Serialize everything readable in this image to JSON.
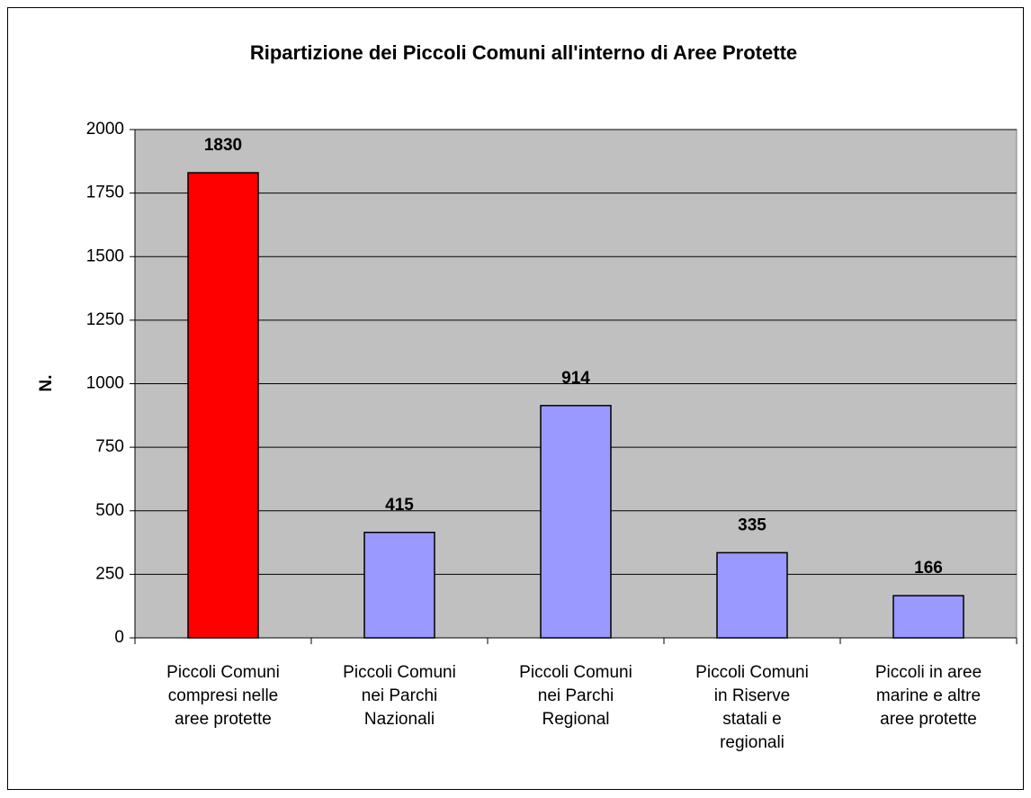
{
  "chart_data": {
    "type": "bar",
    "title": "Ripartizione dei Piccoli Comuni all'interno di Aree Protette",
    "y_label": "N.",
    "categories": [
      [
        "Piccoli Comuni",
        "compresi nelle",
        "aree protette"
      ],
      [
        "Piccoli Comuni",
        "nei Parchi",
        "Nazionali"
      ],
      [
        "Piccoli Comuni",
        "nei Parchi",
        "Regional"
      ],
      [
        "Piccoli Comuni",
        "in Riserve",
        "statali e",
        "regionali"
      ],
      [
        "Piccoli in aree",
        "marine e altre",
        "aree protette"
      ]
    ],
    "values": [
      1830,
      415,
      914,
      335,
      166
    ],
    "colors": [
      "#ff0000",
      "#9999ff",
      "#9999ff",
      "#9999ff",
      "#9999ff"
    ],
    "ylim": [
      0,
      2000
    ],
    "yticks": [
      0,
      250,
      500,
      750,
      1000,
      1250,
      1500,
      1750,
      2000
    ],
    "grid": true,
    "plot_background": "#c0c0c0"
  }
}
